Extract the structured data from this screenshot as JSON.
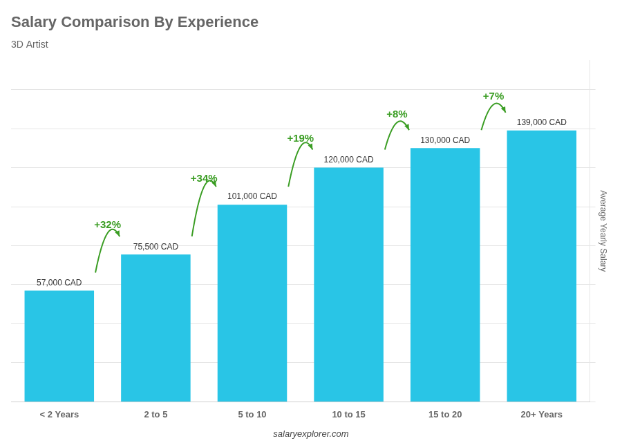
{
  "chart_data": {
    "type": "bar",
    "title": "Salary Comparison By Experience",
    "subtitle": "3D Artist",
    "categories": [
      "< 2 Years",
      "2 to 5",
      "5 to 10",
      "10 to 15",
      "15 to 20",
      "20+ Years"
    ],
    "values": [
      57000,
      75500,
      101000,
      120000,
      130000,
      139000
    ],
    "value_labels": [
      "57,000 CAD",
      "75,500 CAD",
      "101,000 CAD",
      "120,000 CAD",
      "130,000 CAD",
      "139,000 CAD"
    ],
    "data_labels": true,
    "color": "#29c5e6",
    "ylabel": "Average Yearly Salary",
    "ylim": [
      0,
      175000
    ],
    "yticks": [
      0,
      20000,
      40000,
      60000,
      80000,
      100000,
      120000,
      140000,
      160000
    ],
    "grid": true,
    "tick_labels": "x",
    "annotations": [
      {
        "text": "+32%",
        "from": "< 2 Years",
        "to": "2 to 5",
        "color": "#3a9d23"
      },
      {
        "text": "+34%",
        "from": "2 to 5",
        "to": "5 to 10",
        "color": "#3a9d23"
      },
      {
        "text": "+19%",
        "from": "5 to 10",
        "to": "10 to 15",
        "color": "#3a9d23"
      },
      {
        "text": "+8%",
        "from": "10 to 15",
        "to": "15 to 20",
        "color": "#3a9d23"
      },
      {
        "text": "+7%",
        "from": "15 to 20",
        "to": "20+ Years",
        "color": "#3a9d23"
      },
      {
        "text": "salaryexplorer.com"
      }
    ]
  }
}
